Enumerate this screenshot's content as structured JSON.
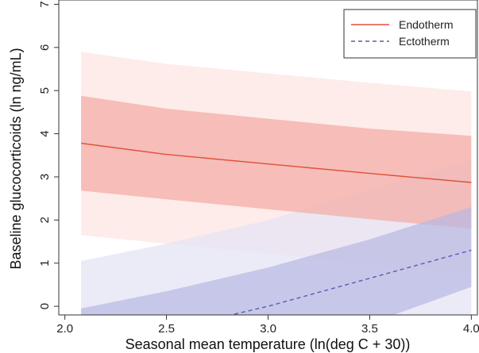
{
  "chart_data": {
    "type": "line",
    "title": "",
    "xlabel": "Seasonal mean temperature (ln(deg C + 30))",
    "ylabel": "Baseline glucocorticoids (ln ng/mL)",
    "xlim": [
      1.97,
      4.03
    ],
    "ylim": [
      -0.2,
      7.1
    ],
    "x_ticks": [
      2.0,
      2.5,
      3.0,
      3.5,
      4.0
    ],
    "x_tick_labels": [
      "2.0",
      "2.5",
      "3.0",
      "3.5",
      "4.0"
    ],
    "y_ticks": [
      0,
      1,
      2,
      3,
      4,
      5,
      6,
      7
    ],
    "y_tick_labels": [
      "0",
      "1",
      "2",
      "3",
      "4",
      "5",
      "6",
      "7"
    ],
    "grid": false,
    "legend": {
      "placement": "top-right",
      "entries": [
        "Endotherm",
        "Ectotherm"
      ]
    },
    "series": [
      {
        "name": "Endotherm",
        "line_style": "solid",
        "color": "#e0503a",
        "inner_fill": "#f4a9a2",
        "outer_fill": "#fde6e3",
        "x": [
          2.08,
          2.5,
          3.0,
          3.5,
          4.0
        ],
        "y": [
          3.78,
          3.52,
          3.3,
          3.08,
          2.87
        ],
        "inner_band": {
          "lower": [
            2.68,
            2.48,
            2.25,
            2.02,
            1.8
          ],
          "upper": [
            4.88,
            4.58,
            4.35,
            4.12,
            3.95
          ]
        },
        "outer_band": {
          "lower": [
            1.65,
            1.45,
            1.22,
            0.98,
            0.75
          ],
          "upper": [
            5.9,
            5.62,
            5.4,
            5.18,
            4.98
          ]
        }
      },
      {
        "name": "Ectotherm",
        "line_style": "dashed",
        "color": "#5a5ab8",
        "inner_fill": "#b8b8e2",
        "outer_fill": "#e4e4f4",
        "x": [
          2.08,
          2.5,
          3.0,
          3.5,
          4.0
        ],
        "y": [
          -1.0,
          -0.55,
          0.0,
          0.65,
          1.3
        ],
        "inner_band": {
          "lower": [
            -0.4,
            -0.4,
            -0.4,
            -0.4,
            0.45
          ],
          "upper": [
            -0.05,
            0.35,
            0.9,
            1.55,
            2.3
          ]
        },
        "outer_band": {
          "lower": [
            -0.4,
            -0.4,
            -0.4,
            -0.4,
            -0.4
          ],
          "upper": [
            1.05,
            1.45,
            2.0,
            2.7,
            3.4
          ]
        }
      }
    ]
  }
}
